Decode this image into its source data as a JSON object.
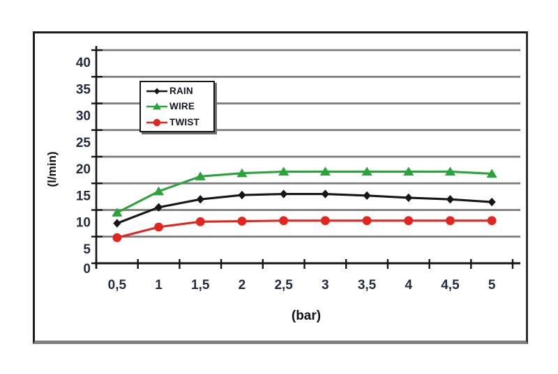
{
  "page": {
    "background": "#ffffff"
  },
  "frame": {
    "border_color": "#1b1b1b",
    "bottom_shadow_color": "#7f7f7f"
  },
  "chart_data": {
    "type": "line",
    "title": "",
    "xlabel": "(bar)",
    "ylabel": "(l/min)",
    "x_categories": [
      "0,5",
      "1",
      "1,5",
      "2",
      "2,5",
      "3",
      "3,5",
      "4",
      "4,5",
      "5"
    ],
    "y_ticks": [
      0,
      5,
      10,
      15,
      20,
      25,
      30,
      35,
      40
    ],
    "ylim": [
      0,
      42
    ],
    "grid": true,
    "gridline_color": "#7a7a7a",
    "axis_color": "#141414",
    "tick_label_color": "#242a40",
    "axis_title_color": "#101018",
    "legend_position": "inside-upper-left",
    "series": [
      {
        "name": "RAIN",
        "color": "#161616",
        "marker": "diamond",
        "values": [
          7.5,
          10.5,
          12,
          12.8,
          13,
          13,
          12.7,
          12.3,
          12,
          11.5
        ]
      },
      {
        "name": "WIRE",
        "color": "#2ba33b",
        "marker": "triangle",
        "values": [
          9.5,
          13.5,
          16.3,
          16.9,
          17.2,
          17.2,
          17.2,
          17.2,
          17.2,
          16.8
        ]
      },
      {
        "name": "TWIST",
        "color": "#e2261f",
        "marker": "circle",
        "values": [
          4.8,
          6.8,
          7.8,
          7.9,
          8,
          8,
          8,
          8,
          8,
          8
        ]
      }
    ]
  }
}
